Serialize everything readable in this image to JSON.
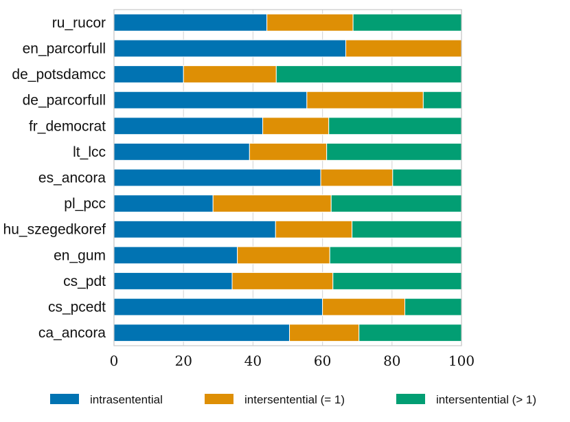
{
  "chart_data": {
    "type": "bar",
    "orientation": "horizontal",
    "stacked": true,
    "title": "",
    "xlabel": "",
    "ylabel": "",
    "xlim": [
      0,
      100
    ],
    "xticks": [
      "0",
      "20",
      "40",
      "60",
      "80",
      "100"
    ],
    "grid": true,
    "legend_position": "bottom",
    "categories": [
      "ru_rucor",
      "en_parcorfull",
      "de_potsdamcc",
      "de_parcorfull",
      "fr_democrat",
      "lt_lcc",
      "es_ancora",
      "pl_pcc",
      "hu_szegedkoref",
      "en_gum",
      "cs_pdt",
      "cs_pcedt",
      "ca_ancora"
    ],
    "series": [
      {
        "name": "intrasentential",
        "color": "#0173b2",
        "values": [
          44.0,
          66.7,
          20.0,
          55.5,
          42.8,
          39.0,
          59.5,
          28.5,
          46.5,
          35.5,
          34.0,
          60.0,
          50.5
        ]
      },
      {
        "name": "intersentential (= 1)",
        "color": "#de8f05",
        "values": [
          24.8,
          33.3,
          26.7,
          33.5,
          19.0,
          22.2,
          20.7,
          34.0,
          22.0,
          26.6,
          29.0,
          23.7,
          20.0
        ]
      },
      {
        "name": "intersentential (> 1)",
        "color": "#029e73",
        "values": [
          31.2,
          0.0,
          53.3,
          11.0,
          38.2,
          38.8,
          19.8,
          37.5,
          31.5,
          37.9,
          37.0,
          16.3,
          29.5
        ]
      }
    ]
  }
}
